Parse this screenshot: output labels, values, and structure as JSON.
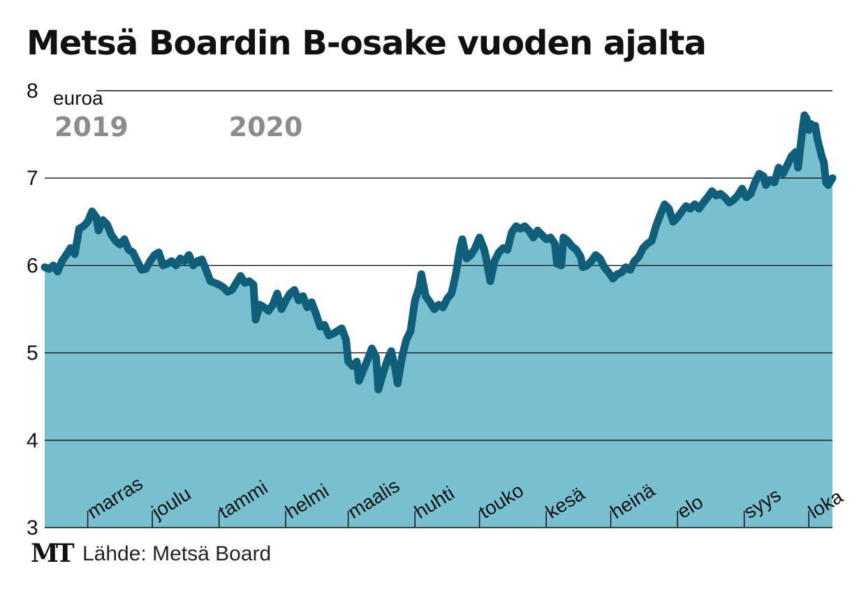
{
  "title": "Metsä Boardin B-osake vuoden ajalta",
  "footer": {
    "logo": "MT",
    "source": "Lähde: Metsä Board"
  },
  "colors": {
    "line": "#0f5f7b",
    "fill": "#78c0d0",
    "grid": "#111111",
    "year": "#8c8c8c"
  },
  "chart_data": {
    "type": "area",
    "title": "Metsä Boardin B-osake vuoden ajalta",
    "unit": "euroa",
    "ylim": [
      3,
      8
    ],
    "y_ticks": [
      3,
      4,
      5,
      6,
      7,
      8
    ],
    "grid": true,
    "x_range": [
      "2019-10-12",
      "2020-10-12"
    ],
    "years": [
      {
        "label": "2019",
        "date": "2019-10-12"
      },
      {
        "label": "2020",
        "date": "2020-01-01"
      }
    ],
    "months": [
      {
        "label": "marras",
        "date": "2019-11-15"
      },
      {
        "label": "joulu",
        "date": "2019-12-15"
      },
      {
        "label": "tammi",
        "date": "2020-01-15"
      },
      {
        "label": "helmi",
        "date": "2020-02-15"
      },
      {
        "label": "maalis",
        "date": "2020-03-15"
      },
      {
        "label": "huhti",
        "date": "2020-04-15"
      },
      {
        "label": "touko",
        "date": "2020-05-15"
      },
      {
        "label": "kesä",
        "date": "2020-06-15"
      },
      {
        "label": "heinä",
        "date": "2020-07-15"
      },
      {
        "label": "elo",
        "date": "2020-08-15"
      },
      {
        "label": "syys",
        "date": "2020-09-15"
      },
      {
        "label": "loka",
        "date": "2020-10-15"
      }
    ],
    "month_ticks": [
      "2019-11-01",
      "2019-12-01",
      "2020-01-01",
      "2020-02-01",
      "2020-03-01",
      "2020-04-01",
      "2020-05-01",
      "2020-06-01",
      "2020-07-01",
      "2020-08-01",
      "2020-09-01",
      "2020-10-01"
    ],
    "series": [
      {
        "values": [
          [
            "2019-10-12",
            5.98
          ],
          [
            "2019-10-14",
            5.96
          ],
          [
            "2019-10-16",
            6.0
          ],
          [
            "2019-10-18",
            5.93
          ],
          [
            "2019-10-20",
            6.05
          ],
          [
            "2019-10-22",
            6.12
          ],
          [
            "2019-10-24",
            6.2
          ],
          [
            "2019-10-26",
            6.13
          ],
          [
            "2019-10-28",
            6.42
          ],
          [
            "2019-10-30",
            6.45
          ],
          [
            "2019-11-01",
            6.5
          ],
          [
            "2019-11-03",
            6.62
          ],
          [
            "2019-11-05",
            6.55
          ],
          [
            "2019-11-06",
            6.4
          ],
          [
            "2019-11-08",
            6.52
          ],
          [
            "2019-11-10",
            6.47
          ],
          [
            "2019-11-12",
            6.35
          ],
          [
            "2019-11-14",
            6.28
          ],
          [
            "2019-11-16",
            6.24
          ],
          [
            "2019-11-18",
            6.3
          ],
          [
            "2019-11-20",
            6.18
          ],
          [
            "2019-11-22",
            6.15
          ],
          [
            "2019-11-24",
            6.05
          ],
          [
            "2019-11-26",
            5.95
          ],
          [
            "2019-11-28",
            5.96
          ],
          [
            "2019-11-30",
            6.05
          ],
          [
            "2019-12-02",
            6.12
          ],
          [
            "2019-12-04",
            6.15
          ],
          [
            "2019-12-06",
            6.0
          ],
          [
            "2019-12-08",
            6.02
          ],
          [
            "2019-12-10",
            6.05
          ],
          [
            "2019-12-12",
            6.0
          ],
          [
            "2019-12-14",
            6.08
          ],
          [
            "2019-12-16",
            6.05
          ],
          [
            "2019-12-18",
            6.12
          ],
          [
            "2019-12-20",
            6.0
          ],
          [
            "2019-12-22",
            6.05
          ],
          [
            "2019-12-24",
            6.07
          ],
          [
            "2019-12-26",
            5.95
          ],
          [
            "2019-12-28",
            5.82
          ],
          [
            "2019-12-30",
            5.8
          ],
          [
            "2020-01-01",
            5.78
          ],
          [
            "2020-01-03",
            5.75
          ],
          [
            "2020-01-05",
            5.7
          ],
          [
            "2020-01-07",
            5.72
          ],
          [
            "2020-01-09",
            5.8
          ],
          [
            "2020-01-11",
            5.88
          ],
          [
            "2020-01-13",
            5.8
          ],
          [
            "2020-01-15",
            5.82
          ],
          [
            "2020-01-17",
            5.78
          ],
          [
            "2020-01-18",
            5.38
          ],
          [
            "2020-01-20",
            5.55
          ],
          [
            "2020-01-22",
            5.52
          ],
          [
            "2020-01-24",
            5.48
          ],
          [
            "2020-01-26",
            5.55
          ],
          [
            "2020-01-28",
            5.68
          ],
          [
            "2020-01-30",
            5.5
          ],
          [
            "2020-02-01",
            5.6
          ],
          [
            "2020-02-03",
            5.68
          ],
          [
            "2020-02-05",
            5.72
          ],
          [
            "2020-02-07",
            5.6
          ],
          [
            "2020-02-09",
            5.65
          ],
          [
            "2020-02-11",
            5.52
          ],
          [
            "2020-02-13",
            5.58
          ],
          [
            "2020-02-15",
            5.45
          ],
          [
            "2020-02-17",
            5.3
          ],
          [
            "2020-02-19",
            5.32
          ],
          [
            "2020-02-21",
            5.2
          ],
          [
            "2020-02-23",
            5.22
          ],
          [
            "2020-02-25",
            5.25
          ],
          [
            "2020-02-27",
            5.28
          ],
          [
            "2020-02-29",
            5.15
          ],
          [
            "2020-03-01",
            4.9
          ],
          [
            "2020-03-03",
            4.85
          ],
          [
            "2020-03-05",
            4.9
          ],
          [
            "2020-03-06",
            4.68
          ],
          [
            "2020-03-08",
            4.8
          ],
          [
            "2020-03-10",
            4.92
          ],
          [
            "2020-03-12",
            5.05
          ],
          [
            "2020-03-14",
            4.95
          ],
          [
            "2020-03-15",
            4.58
          ],
          [
            "2020-03-17",
            4.75
          ],
          [
            "2020-03-19",
            4.9
          ],
          [
            "2020-03-21",
            5.02
          ],
          [
            "2020-03-23",
            4.8
          ],
          [
            "2020-03-24",
            4.65
          ],
          [
            "2020-03-26",
            4.95
          ],
          [
            "2020-03-28",
            5.15
          ],
          [
            "2020-03-30",
            5.25
          ],
          [
            "2020-04-01",
            5.6
          ],
          [
            "2020-04-03",
            5.75
          ],
          [
            "2020-04-04",
            5.9
          ],
          [
            "2020-04-06",
            5.65
          ],
          [
            "2020-04-08",
            5.58
          ],
          [
            "2020-04-10",
            5.5
          ],
          [
            "2020-04-12",
            5.55
          ],
          [
            "2020-04-14",
            5.52
          ],
          [
            "2020-04-16",
            5.62
          ],
          [
            "2020-04-18",
            5.68
          ],
          [
            "2020-04-20",
            5.9
          ],
          [
            "2020-04-22",
            6.2
          ],
          [
            "2020-04-23",
            6.3
          ],
          [
            "2020-04-25",
            6.08
          ],
          [
            "2020-04-27",
            6.12
          ],
          [
            "2020-04-29",
            6.2
          ],
          [
            "2020-05-01",
            6.32
          ],
          [
            "2020-05-03",
            6.2
          ],
          [
            "2020-05-04",
            6.1
          ],
          [
            "2020-05-06",
            5.82
          ],
          [
            "2020-05-08",
            6.05
          ],
          [
            "2020-05-10",
            6.15
          ],
          [
            "2020-05-12",
            6.2
          ],
          [
            "2020-05-14",
            6.18
          ],
          [
            "2020-05-16",
            6.38
          ],
          [
            "2020-05-18",
            6.45
          ],
          [
            "2020-05-20",
            6.42
          ],
          [
            "2020-05-22",
            6.45
          ],
          [
            "2020-05-24",
            6.4
          ],
          [
            "2020-05-26",
            6.32
          ],
          [
            "2020-05-28",
            6.4
          ],
          [
            "2020-05-30",
            6.35
          ],
          [
            "2020-06-01",
            6.3
          ],
          [
            "2020-06-03",
            6.32
          ],
          [
            "2020-06-05",
            6.25
          ],
          [
            "2020-06-06",
            6.02
          ],
          [
            "2020-06-08",
            6.0
          ],
          [
            "2020-06-09",
            6.32
          ],
          [
            "2020-06-11",
            6.28
          ],
          [
            "2020-06-13",
            6.22
          ],
          [
            "2020-06-15",
            6.18
          ],
          [
            "2020-06-17",
            6.1
          ],
          [
            "2020-06-18",
            5.98
          ],
          [
            "2020-06-20",
            6.0
          ],
          [
            "2020-06-22",
            6.05
          ],
          [
            "2020-06-24",
            6.12
          ],
          [
            "2020-06-26",
            6.08
          ],
          [
            "2020-06-28",
            5.98
          ],
          [
            "2020-06-30",
            5.92
          ],
          [
            "2020-07-02",
            5.85
          ],
          [
            "2020-07-04",
            5.9
          ],
          [
            "2020-07-06",
            5.92
          ],
          [
            "2020-07-08",
            5.98
          ],
          [
            "2020-07-10",
            5.95
          ],
          [
            "2020-07-12",
            6.05
          ],
          [
            "2020-07-14",
            6.1
          ],
          [
            "2020-07-16",
            6.2
          ],
          [
            "2020-07-18",
            6.25
          ],
          [
            "2020-07-20",
            6.28
          ],
          [
            "2020-07-22",
            6.45
          ],
          [
            "2020-07-24",
            6.58
          ],
          [
            "2020-07-26",
            6.7
          ],
          [
            "2020-07-28",
            6.65
          ],
          [
            "2020-07-30",
            6.5
          ],
          [
            "2020-08-01",
            6.55
          ],
          [
            "2020-08-03",
            6.62
          ],
          [
            "2020-08-05",
            6.68
          ],
          [
            "2020-08-07",
            6.65
          ],
          [
            "2020-08-09",
            6.7
          ],
          [
            "2020-08-11",
            6.65
          ],
          [
            "2020-08-13",
            6.72
          ],
          [
            "2020-08-15",
            6.78
          ],
          [
            "2020-08-17",
            6.85
          ],
          [
            "2020-08-19",
            6.8
          ],
          [
            "2020-08-21",
            6.82
          ],
          [
            "2020-08-23",
            6.78
          ],
          [
            "2020-08-25",
            6.72
          ],
          [
            "2020-08-27",
            6.75
          ],
          [
            "2020-08-29",
            6.8
          ],
          [
            "2020-08-31",
            6.88
          ],
          [
            "2020-09-02",
            6.78
          ],
          [
            "2020-09-04",
            6.82
          ],
          [
            "2020-09-06",
            6.95
          ],
          [
            "2020-09-08",
            7.05
          ],
          [
            "2020-09-10",
            7.02
          ],
          [
            "2020-09-11",
            6.92
          ],
          [
            "2020-09-13",
            6.98
          ],
          [
            "2020-09-15",
            6.95
          ],
          [
            "2020-09-17",
            7.12
          ],
          [
            "2020-09-19",
            7.05
          ],
          [
            "2020-09-21",
            7.15
          ],
          [
            "2020-09-23",
            7.25
          ],
          [
            "2020-09-25",
            7.3
          ],
          [
            "2020-09-26",
            7.12
          ],
          [
            "2020-09-28",
            7.55
          ],
          [
            "2020-09-29",
            7.72
          ],
          [
            "2020-09-30",
            7.68
          ],
          [
            "2020-10-01",
            7.55
          ],
          [
            "2020-10-02",
            7.62
          ],
          [
            "2020-10-03",
            7.58
          ],
          [
            "2020-10-04",
            7.6
          ],
          [
            "2020-10-05",
            7.45
          ],
          [
            "2020-10-06",
            7.35
          ],
          [
            "2020-10-07",
            7.25
          ],
          [
            "2020-10-08",
            7.18
          ],
          [
            "2020-10-09",
            6.95
          ],
          [
            "2020-10-10",
            6.92
          ],
          [
            "2020-10-11",
            6.96
          ],
          [
            "2020-10-12",
            7.0
          ]
        ]
      }
    ]
  }
}
